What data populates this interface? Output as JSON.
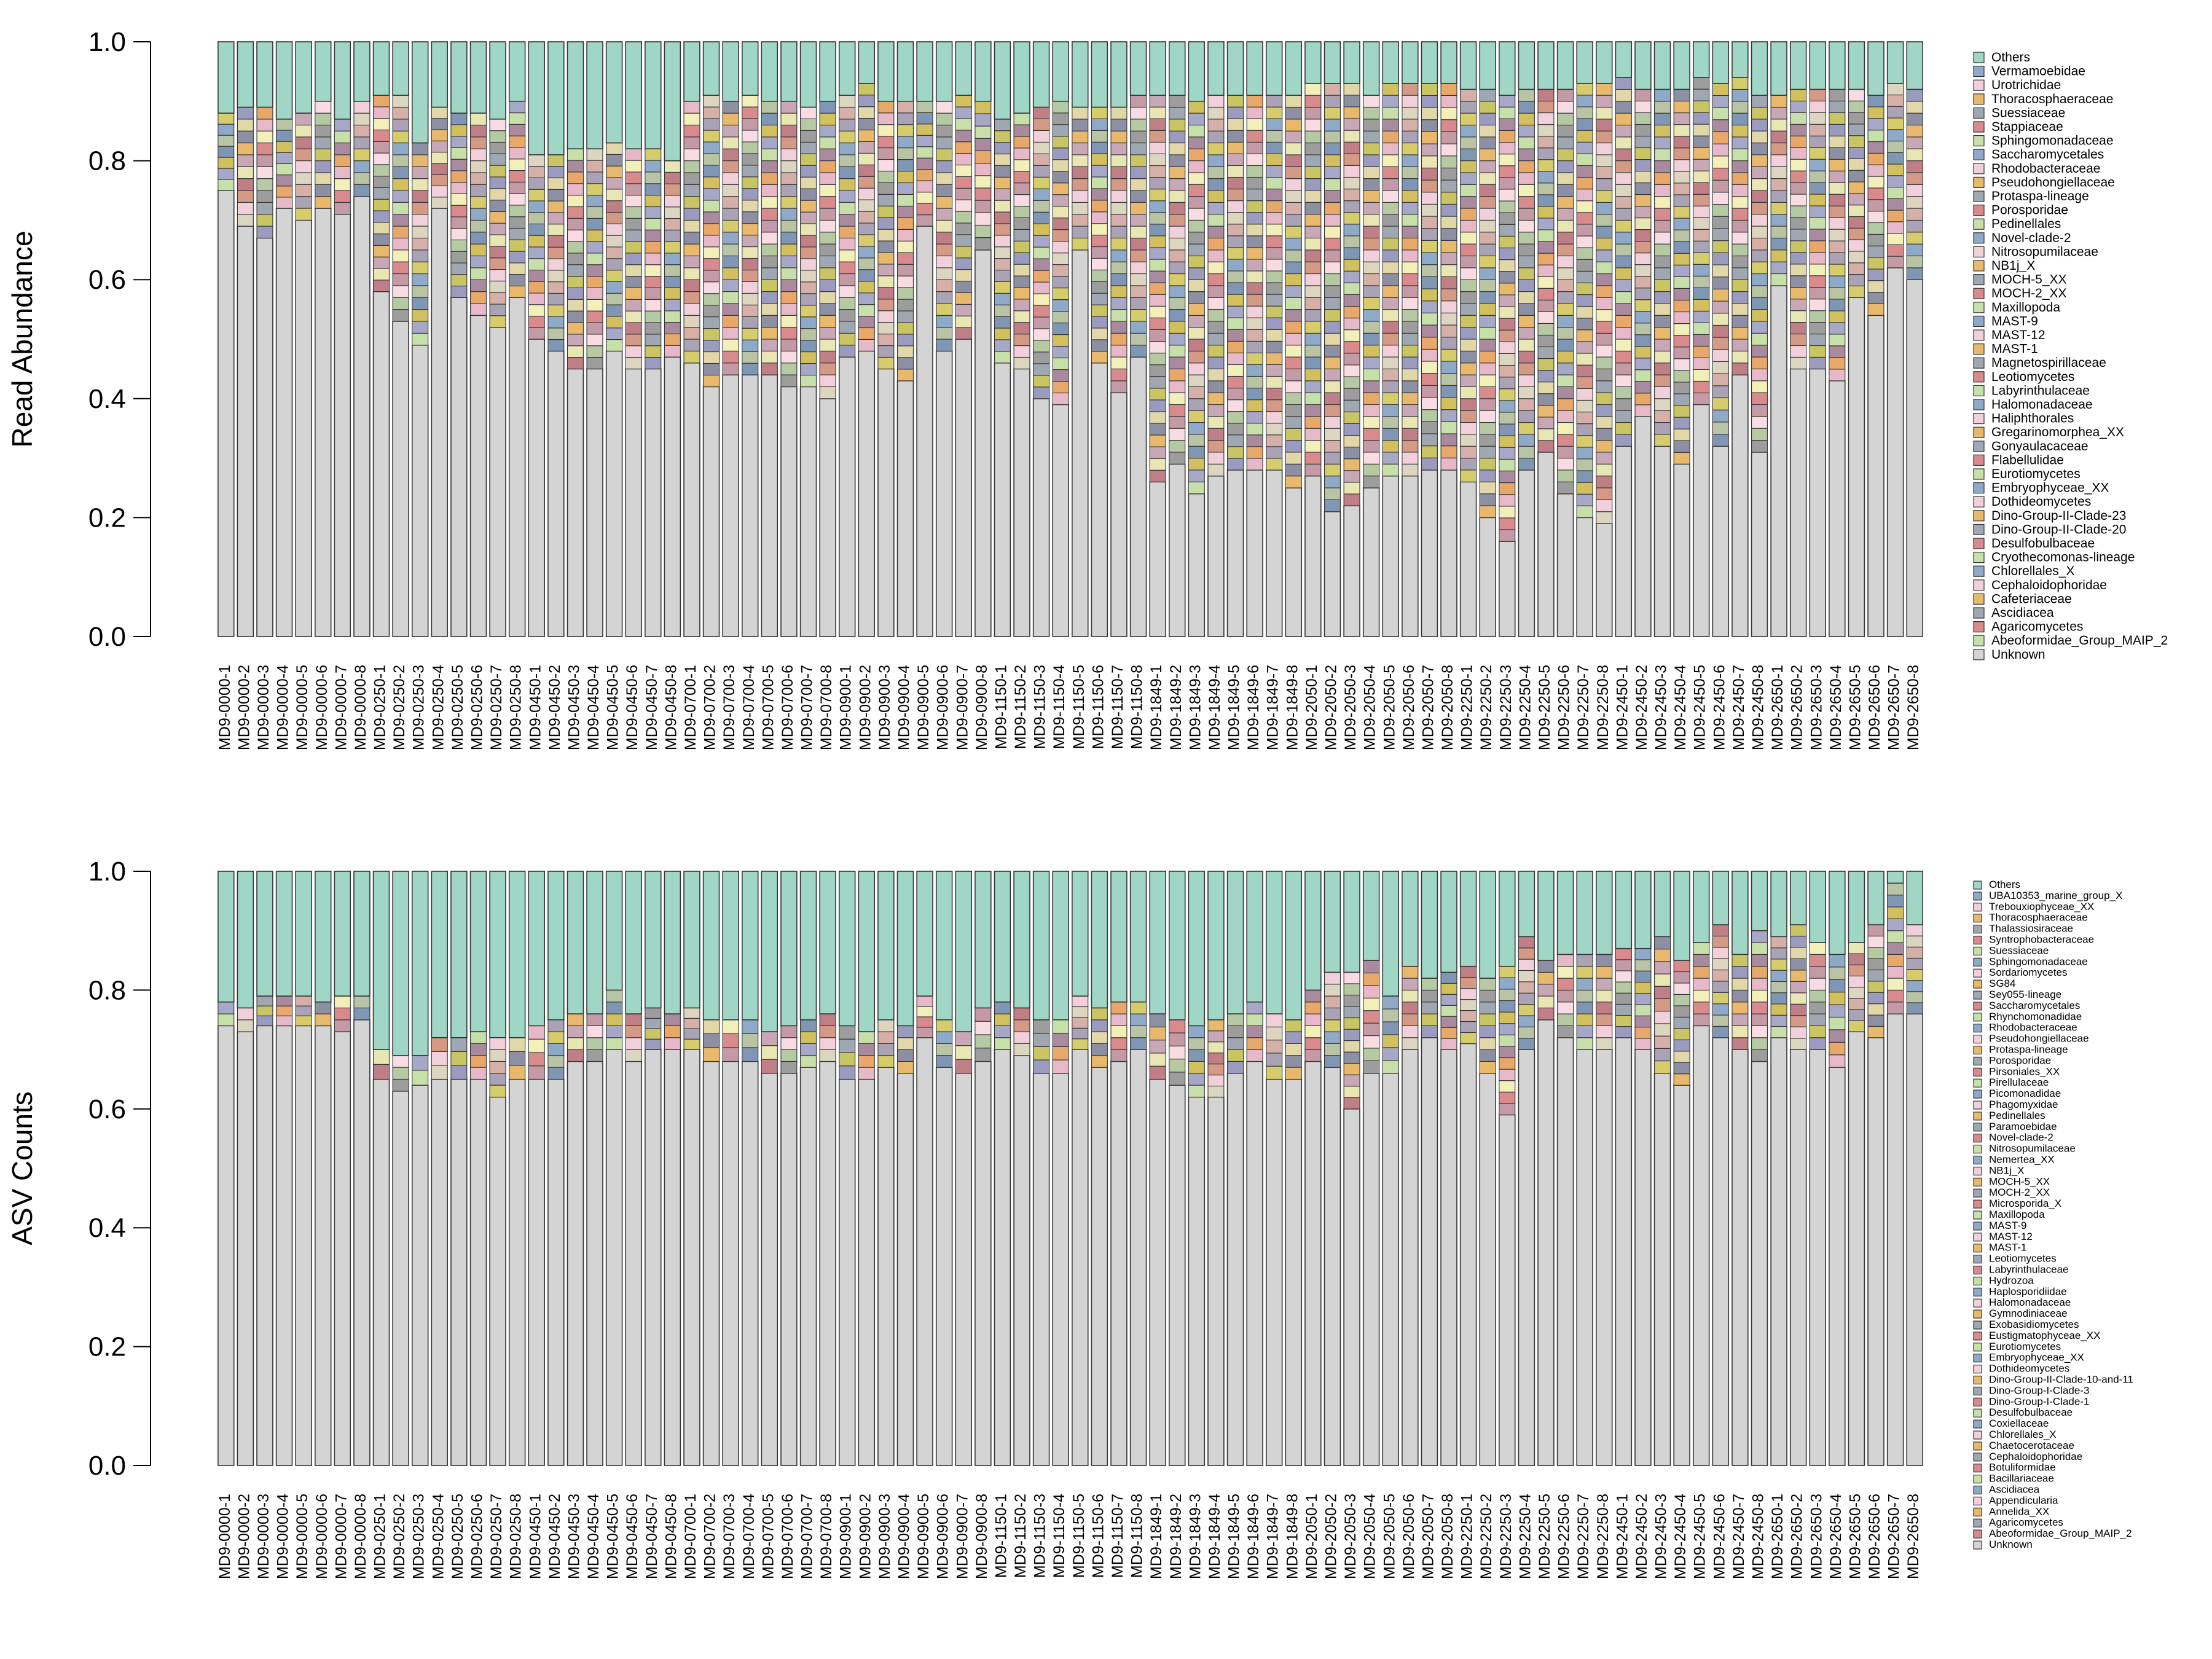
{
  "chart_data": [
    {
      "type": "bar",
      "stacked": true,
      "ylabel": "Read Abundance",
      "ylim": [
        0,
        1
      ],
      "y_ticks": [
        "0.0",
        "0.2",
        "0.4",
        "0.6",
        "0.8",
        "1.0"
      ],
      "categories": [
        "MD9-0000-1",
        "MD9-0000-2",
        "MD9-0000-3",
        "MD9-0000-4",
        "MD9-0000-5",
        "MD9-0000-6",
        "MD9-0000-7",
        "MD9-0000-8",
        "MD9-0250-1",
        "MD9-0250-2",
        "MD9-0250-3",
        "MD9-0250-4",
        "MD9-0250-5",
        "MD9-0250-6",
        "MD9-0250-7",
        "MD9-0250-8",
        "MD9-0450-1",
        "MD9-0450-2",
        "MD9-0450-3",
        "MD9-0450-4",
        "MD9-0450-5",
        "MD9-0450-6",
        "MD9-0450-7",
        "MD9-0450-8",
        "MD9-0700-1",
        "MD9-0700-2",
        "MD9-0700-3",
        "MD9-0700-4",
        "MD9-0700-5",
        "MD9-0700-6",
        "MD9-0700-7",
        "MD9-0700-8",
        "MD9-0900-1",
        "MD9-0900-2",
        "MD9-0900-3",
        "MD9-0900-4",
        "MD9-0900-5",
        "MD9-0900-6",
        "MD9-0900-7",
        "MD9-0900-8",
        "MD9-1150-1",
        "MD9-1150-2",
        "MD9-1150-3",
        "MD9-1150-4",
        "MD9-1150-5",
        "MD9-1150-6",
        "MD9-1150-7",
        "MD9-1150-8",
        "MD9-1849-1",
        "MD9-1849-2",
        "MD9-1849-3",
        "MD9-1849-4",
        "MD9-1849-5",
        "MD9-1849-6",
        "MD9-1849-7",
        "MD9-1849-8",
        "MD9-2050-1",
        "MD9-2050-2",
        "MD9-2050-3",
        "MD9-2050-4",
        "MD9-2050-5",
        "MD9-2050-6",
        "MD9-2050-7",
        "MD9-2050-8",
        "MD9-2250-1",
        "MD9-2250-2",
        "MD9-2250-3",
        "MD9-2250-4",
        "MD9-2250-5",
        "MD9-2250-6",
        "MD9-2250-7",
        "MD9-2250-8",
        "MD9-2450-1",
        "MD9-2450-2",
        "MD9-2450-3",
        "MD9-2450-4",
        "MD9-2450-5",
        "MD9-2450-6",
        "MD9-2450-7",
        "MD9-2450-8",
        "MD9-2650-1",
        "MD9-2650-2",
        "MD9-2650-3",
        "MD9-2650-4",
        "MD9-2650-5",
        "MD9-2650-6",
        "MD9-2650-7",
        "MD9-2650-8"
      ],
      "legend": [
        "Others",
        "Vermamoebidae",
        "Urotrichidae",
        "Thoracosphaeraceae",
        "Suessiaceae",
        "Stappiaceae",
        "Sphingomonadaceae",
        "Saccharomycetales",
        "Rhodobacteraceae",
        "Pseudohongiellaceae",
        "Protaspa-lineage",
        "Porosporidae",
        "Pedinellales",
        "Novel-clade-2",
        "Nitrosopumilaceae",
        "NB1j_X",
        "MOCH-5_XX",
        "MOCH-2_XX",
        "Maxillopoda",
        "MAST-9",
        "MAST-12",
        "MAST-1",
        "Magnetospirillaceae",
        "Leotiomycetes",
        "Labyrinthulaceae",
        "Halomonadaceae",
        "Haliphthorales",
        "Gregarinomorphea_XX",
        "Gonyaulacaceae",
        "Flabellulidae",
        "Eurotiomycetes",
        "Embryophyceae_XX",
        "Dothideomycetes",
        "Dino-Group-II-Clade-23",
        "Dino-Group-II-Clade-20",
        "Desulfobulbaceae",
        "Cryothecomonas-lineage",
        "Chlorellales_X",
        "Cephaloidophoridae",
        "Cafeteriaceae",
        "Ascidiacea",
        "Agaricomycetes",
        "Abeoformidae_Group_MAIP_2",
        "Unknown"
      ],
      "unknown": [
        0.75,
        0.69,
        0.67,
        0.72,
        0.7,
        0.72,
        0.71,
        0.74,
        0.58,
        0.53,
        0.49,
        0.72,
        0.57,
        0.54,
        0.52,
        0.57,
        0.5,
        0.48,
        0.45,
        0.45,
        0.48,
        0.45,
        0.45,
        0.47,
        0.46,
        0.42,
        0.44,
        0.44,
        0.44,
        0.42,
        0.42,
        0.4,
        0.47,
        0.48,
        0.45,
        0.43,
        0.69,
        0.48,
        0.5,
        0.65,
        0.46,
        0.45,
        0.4,
        0.39,
        0.65,
        0.46,
        0.41,
        0.47,
        0.26,
        0.29,
        0.24,
        0.27,
        0.28,
        0.28,
        0.28,
        0.25,
        0.27,
        0.21,
        0.22,
        0.25,
        0.27,
        0.27,
        0.28,
        0.28,
        0.26,
        0.2,
        0.16,
        0.28,
        0.31,
        0.24,
        0.2,
        0.19,
        0.32,
        0.37,
        0.32,
        0.29,
        0.39,
        0.32,
        0.44,
        0.31,
        0.59,
        0.45,
        0.45,
        0.43,
        0.57,
        0.54,
        0.62,
        0.6
      ],
      "others": [
        0.12,
        0.11,
        0.11,
        0.13,
        0.12,
        0.1,
        0.13,
        0.1,
        0.09,
        0.09,
        0.17,
        0.11,
        0.12,
        0.12,
        0.13,
        0.1,
        0.19,
        0.19,
        0.18,
        0.18,
        0.17,
        0.18,
        0.18,
        0.2,
        0.1,
        0.09,
        0.1,
        0.09,
        0.1,
        0.1,
        0.11,
        0.1,
        0.09,
        0.07,
        0.1,
        0.1,
        0.1,
        0.1,
        0.09,
        0.1,
        0.13,
        0.12,
        0.11,
        0.1,
        0.11,
        0.11,
        0.11,
        0.09,
        0.09,
        0.09,
        0.1,
        0.09,
        0.09,
        0.09,
        0.09,
        0.09,
        0.07,
        0.07,
        0.07,
        0.09,
        0.07,
        0.07,
        0.07,
        0.07,
        0.08,
        0.08,
        0.09,
        0.08,
        0.08,
        0.08,
        0.07,
        0.07,
        0.06,
        0.08,
        0.08,
        0.08,
        0.06,
        0.07,
        0.06,
        0.09,
        0.09,
        0.08,
        0.08,
        0.08,
        0.08,
        0.09,
        0.07,
        0.08
      ]
    },
    {
      "type": "bar",
      "stacked": true,
      "ylabel": "ASV Counts",
      "ylim": [
        0,
        1
      ],
      "y_ticks": [
        "0.0",
        "0.2",
        "0.4",
        "0.6",
        "0.8",
        "1.0"
      ],
      "categories": [
        "MD9-0000-1",
        "MD9-0000-2",
        "MD9-0000-3",
        "MD9-0000-4",
        "MD9-0000-5",
        "MD9-0000-6",
        "MD9-0000-7",
        "MD9-0000-8",
        "MD9-0250-1",
        "MD9-0250-2",
        "MD9-0250-3",
        "MD9-0250-4",
        "MD9-0250-5",
        "MD9-0250-6",
        "MD9-0250-7",
        "MD9-0250-8",
        "MD9-0450-1",
        "MD9-0450-2",
        "MD9-0450-3",
        "MD9-0450-4",
        "MD9-0450-5",
        "MD9-0450-6",
        "MD9-0450-7",
        "MD9-0450-8",
        "MD9-0700-1",
        "MD9-0700-2",
        "MD9-0700-3",
        "MD9-0700-4",
        "MD9-0700-5",
        "MD9-0700-6",
        "MD9-0700-7",
        "MD9-0700-8",
        "MD9-0900-1",
        "MD9-0900-2",
        "MD9-0900-3",
        "MD9-0900-4",
        "MD9-0900-5",
        "MD9-0900-6",
        "MD9-0900-7",
        "MD9-0900-8",
        "MD9-1150-1",
        "MD9-1150-2",
        "MD9-1150-3",
        "MD9-1150-4",
        "MD9-1150-5",
        "MD9-1150-6",
        "MD9-1150-7",
        "MD9-1150-8",
        "MD9-1849-1",
        "MD9-1849-2",
        "MD9-1849-3",
        "MD9-1849-4",
        "MD9-1849-5",
        "MD9-1849-6",
        "MD9-1849-7",
        "MD9-1849-8",
        "MD9-2050-1",
        "MD9-2050-2",
        "MD9-2050-3",
        "MD9-2050-4",
        "MD9-2050-5",
        "MD9-2050-6",
        "MD9-2050-7",
        "MD9-2050-8",
        "MD9-2250-1",
        "MD9-2250-2",
        "MD9-2250-3",
        "MD9-2250-4",
        "MD9-2250-5",
        "MD9-2250-6",
        "MD9-2250-7",
        "MD9-2250-8",
        "MD9-2450-1",
        "MD9-2450-2",
        "MD9-2450-3",
        "MD9-2450-4",
        "MD9-2450-5",
        "MD9-2450-6",
        "MD9-2450-7",
        "MD9-2450-8",
        "MD9-2650-1",
        "MD9-2650-2",
        "MD9-2650-3",
        "MD9-2650-4",
        "MD9-2650-5",
        "MD9-2650-6",
        "MD9-2650-7",
        "MD9-2650-8"
      ],
      "legend": [
        "Others",
        "UBA10353_marine_group_X",
        "Trebouxiophyceae_XX",
        "Thoracosphaeraceae",
        "Thalassiosiraceae",
        "Syntrophobacteraceae",
        "Suessiaceae",
        "Sphingomonadaceae",
        "Sordariomycetes",
        "SG84",
        "Sey055-lineage",
        "Saccharomycetales",
        "Rhynchomonadidae",
        "Rhodobacteraceae",
        "Pseudohongiellaceae",
        "Protaspa-lineage",
        "Porosporidae",
        "Pirsoniales_XX",
        "Pirellulaceae",
        "Picomonadidae",
        "Phagomyxidae",
        "Pedinellales",
        "Paramoebidae",
        "Novel-clade-2",
        "Nitrosopumilaceae",
        "Nemertea_XX",
        "NB1j_X",
        "MOCH-5_XX",
        "MOCH-2_XX",
        "Microsporida_X",
        "Maxillopoda",
        "MAST-9",
        "MAST-12",
        "MAST-1",
        "Leotiomycetes",
        "Labyrinthulaceae",
        "Hydrozoa",
        "Haplosporidiidae",
        "Halomonadaceae",
        "Gymnodiniaceae",
        "Exobasidiomycetes",
        "Eustigmatophyceae_XX",
        "Eurotiomycetes",
        "Embryophyceae_XX",
        "Dothideomycetes",
        "Dino-Group-II-Clade-10-and-11",
        "Dino-Group-I-Clade-3",
        "Dino-Group-I-Clade-1",
        "Desulfobulbaceae",
        "Coxiellaceae",
        "Chlorellales_X",
        "Chaetocerotaceae",
        "Cephaloidophoridae",
        "Botuliformidae",
        "Bacillariaceae",
        "Ascidiacea",
        "Appendicularia",
        "Annelida_XX",
        "Agaricomycetes",
        "Abeoformidae_Group_MAIP_2",
        "Unknown"
      ],
      "unknown": [
        0.74,
        0.73,
        0.74,
        0.74,
        0.74,
        0.74,
        0.73,
        0.75,
        0.65,
        0.63,
        0.64,
        0.65,
        0.65,
        0.65,
        0.62,
        0.65,
        0.65,
        0.65,
        0.68,
        0.68,
        0.7,
        0.68,
        0.7,
        0.7,
        0.7,
        0.68,
        0.68,
        0.68,
        0.66,
        0.66,
        0.67,
        0.68,
        0.65,
        0.65,
        0.67,
        0.66,
        0.72,
        0.67,
        0.66,
        0.68,
        0.7,
        0.69,
        0.66,
        0.66,
        0.7,
        0.67,
        0.68,
        0.7,
        0.65,
        0.64,
        0.62,
        0.62,
        0.66,
        0.68,
        0.65,
        0.65,
        0.68,
        0.67,
        0.6,
        0.66,
        0.66,
        0.7,
        0.72,
        0.7,
        0.71,
        0.66,
        0.59,
        0.7,
        0.75,
        0.72,
        0.7,
        0.7,
        0.72,
        0.7,
        0.66,
        0.64,
        0.74,
        0.72,
        0.7,
        0.68,
        0.72,
        0.7,
        0.7,
        0.67,
        0.73,
        0.72,
        0.76,
        0.76
      ],
      "others": [
        0.22,
        0.23,
        0.21,
        0.21,
        0.21,
        0.22,
        0.21,
        0.21,
        0.3,
        0.31,
        0.31,
        0.28,
        0.28,
        0.27,
        0.28,
        0.28,
        0.26,
        0.25,
        0.24,
        0.24,
        0.2,
        0.24,
        0.23,
        0.24,
        0.23,
        0.25,
        0.25,
        0.25,
        0.27,
        0.26,
        0.25,
        0.24,
        0.26,
        0.27,
        0.25,
        0.26,
        0.21,
        0.25,
        0.27,
        0.23,
        0.22,
        0.23,
        0.25,
        0.25,
        0.21,
        0.23,
        0.22,
        0.22,
        0.24,
        0.25,
        0.26,
        0.25,
        0.24,
        0.22,
        0.24,
        0.25,
        0.2,
        0.17,
        0.17,
        0.15,
        0.21,
        0.16,
        0.18,
        0.17,
        0.16,
        0.18,
        0.16,
        0.11,
        0.15,
        0.14,
        0.14,
        0.14,
        0.13,
        0.13,
        0.11,
        0.15,
        0.12,
        0.09,
        0.14,
        0.1,
        0.11,
        0.09,
        0.12,
        0.14,
        0.12,
        0.09,
        0.02,
        0.09
      ]
    }
  ]
}
